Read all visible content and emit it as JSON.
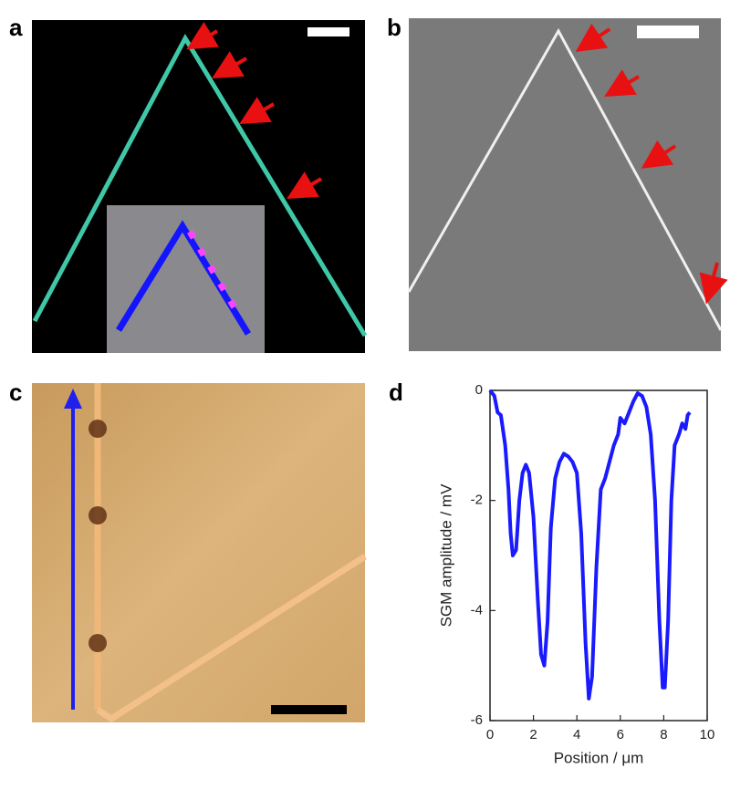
{
  "panel_labels": [
    "a",
    "b",
    "c",
    "d"
  ],
  "chart_data": {
    "type": "line",
    "xlabel": "Position / μm",
    "ylabel": "SGM amplitude / mV",
    "x": [
      0.0,
      0.2,
      0.35,
      0.5,
      0.7,
      0.85,
      0.95,
      1.05,
      1.2,
      1.35,
      1.5,
      1.65,
      1.8,
      2.0,
      2.2,
      2.35,
      2.5,
      2.65,
      2.8,
      3.0,
      3.2,
      3.4,
      3.6,
      3.8,
      4.0,
      4.2,
      4.4,
      4.55,
      4.7,
      4.9,
      5.1,
      5.3,
      5.5,
      5.7,
      5.9,
      6.0,
      6.2,
      6.4,
      6.6,
      6.8,
      7.0,
      7.2,
      7.4,
      7.6,
      7.8,
      7.95,
      8.05,
      8.2,
      8.35,
      8.5,
      8.7,
      8.85,
      9.0,
      9.1,
      9.2
    ],
    "values": [
      0,
      -0.1,
      -0.4,
      -0.45,
      -1.0,
      -1.8,
      -2.6,
      -3.0,
      -2.9,
      -2.0,
      -1.5,
      -1.35,
      -1.5,
      -2.3,
      -3.8,
      -4.8,
      -5.0,
      -4.2,
      -2.5,
      -1.6,
      -1.3,
      -1.15,
      -1.2,
      -1.3,
      -1.5,
      -2.6,
      -4.6,
      -5.6,
      -5.2,
      -3.2,
      -1.8,
      -1.6,
      -1.3,
      -1.0,
      -0.8,
      -0.5,
      -0.6,
      -0.4,
      -0.2,
      -0.05,
      -0.1,
      -0.3,
      -0.8,
      -2.0,
      -4.2,
      -5.4,
      -5.4,
      -4.2,
      -2.0,
      -1.0,
      -0.8,
      -0.6,
      -0.7,
      -0.45,
      -0.4
    ],
    "color": "#1a1aff",
    "xlim": [
      0,
      10
    ],
    "ylim": [
      -6,
      0
    ],
    "xticks": [
      0,
      2,
      4,
      6,
      8,
      10
    ],
    "yticks": [
      -6,
      -4,
      -2,
      0
    ]
  }
}
